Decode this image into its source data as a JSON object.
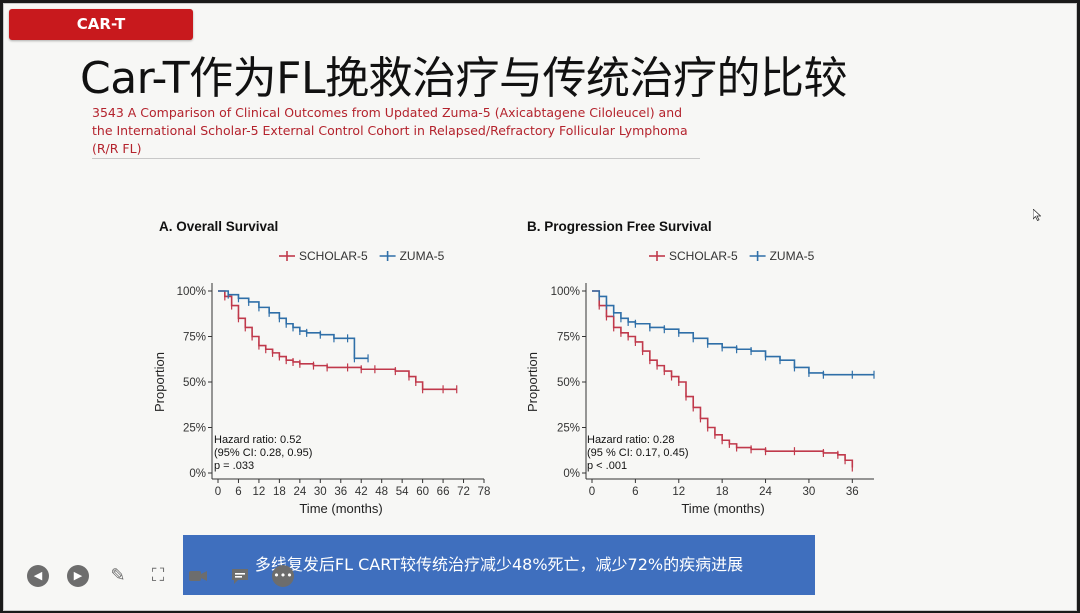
{
  "tag": {
    "label": "CAR-T"
  },
  "slide": {
    "title": "Car-T作为FL挽救治疗与传统治疗的比较",
    "subtitle": "3543 A Comparison of Clinical Outcomes from Updated Zuma-5 (Axicabtagene Ciloleucel) and the International Scholar-5 External Control Cohort in Relapsed/Refractory Follicular Lymphoma (R/R FL)",
    "caption": "多线复发后FL CART较传统治疗减少48%死亡，减少72%的疾病进展"
  },
  "colors": {
    "scholar": "#c0394b",
    "zuma": "#2f6fa8",
    "caption_bg": "#3f6fbe",
    "tag_bg": "#c8191d"
  },
  "controls": [
    {
      "name": "prev-button",
      "icon": "chevron-left-icon"
    },
    {
      "name": "next-button",
      "icon": "chevron-right-icon"
    },
    {
      "name": "pen-button",
      "icon": "pencil-icon"
    },
    {
      "name": "fullscreen-button",
      "icon": "expand-icon"
    },
    {
      "name": "video-button",
      "icon": "video-camera-icon"
    },
    {
      "name": "comment-button",
      "icon": "comment-icon"
    },
    {
      "name": "more-button",
      "icon": "more-icon"
    }
  ],
  "chart_data": [
    {
      "type": "line",
      "title": "A. Overall Survival",
      "xlabel": "Time (months)",
      "ylabel": "Proportion",
      "x_ticks": [
        0,
        6,
        12,
        18,
        24,
        30,
        36,
        42,
        48,
        54,
        60,
        66,
        72,
        78
      ],
      "y_ticks": [
        "0%",
        "25%",
        "50%",
        "75%",
        "100%"
      ],
      "xlim": [
        0,
        78
      ],
      "ylim": [
        0,
        100
      ],
      "legend": "top",
      "annotation": "Hazard ratio: 0.52\n(95% CI: 0.28, 0.95)\np = .033",
      "series": [
        {
          "name": "SCHOLAR-5",
          "points": [
            [
              0,
              100
            ],
            [
              2,
              97
            ],
            [
              4,
              92
            ],
            [
              6,
              85
            ],
            [
              8,
              80
            ],
            [
              10,
              75
            ],
            [
              12,
              70
            ],
            [
              14,
              68
            ],
            [
              16,
              66
            ],
            [
              18,
              64
            ],
            [
              20,
              62
            ],
            [
              22,
              61
            ],
            [
              24,
              60
            ],
            [
              28,
              59
            ],
            [
              32,
              58
            ],
            [
              38,
              58
            ],
            [
              42,
              57
            ],
            [
              46,
              57
            ],
            [
              52,
              56
            ],
            [
              56,
              53
            ],
            [
              58,
              50
            ],
            [
              60,
              46
            ],
            [
              66,
              46
            ],
            [
              70,
              46
            ]
          ]
        },
        {
          "name": "ZUMA-5",
          "points": [
            [
              0,
              100
            ],
            [
              3,
              98
            ],
            [
              6,
              96
            ],
            [
              9,
              94
            ],
            [
              12,
              91
            ],
            [
              15,
              88
            ],
            [
              18,
              85
            ],
            [
              20,
              82
            ],
            [
              22,
              80
            ],
            [
              24,
              78
            ],
            [
              26,
              77
            ],
            [
              30,
              76
            ],
            [
              34,
              74
            ],
            [
              38,
              74
            ],
            [
              40,
              63
            ],
            [
              44,
              63
            ]
          ]
        }
      ]
    },
    {
      "type": "line",
      "title": "B. Progression Free Survival",
      "xlabel": "Time (months)",
      "ylabel": "Proportion",
      "x_ticks": [
        0,
        6,
        12,
        18,
        24,
        30,
        36
      ],
      "y_ticks": [
        "0%",
        "25%",
        "50%",
        "75%",
        "100%"
      ],
      "xlim": [
        0,
        39
      ],
      "ylim": [
        0,
        100
      ],
      "legend": "top",
      "annotation": "Hazard ratio: 0.28\n(95 % CI: 0.17, 0.45)\np < .001",
      "series": [
        {
          "name": "SCHOLAR-5",
          "points": [
            [
              0,
              100
            ],
            [
              1,
              92
            ],
            [
              2,
              86
            ],
            [
              3,
              80
            ],
            [
              4,
              77
            ],
            [
              5,
              75
            ],
            [
              6,
              72
            ],
            [
              7,
              67
            ],
            [
              8,
              62
            ],
            [
              9,
              59
            ],
            [
              10,
              56
            ],
            [
              11,
              53
            ],
            [
              12,
              50
            ],
            [
              13,
              42
            ],
            [
              14,
              36
            ],
            [
              15,
              30
            ],
            [
              16,
              25
            ],
            [
              17,
              21
            ],
            [
              18,
              18
            ],
            [
              19,
              16
            ],
            [
              20,
              14
            ],
            [
              22,
              13
            ],
            [
              24,
              12
            ],
            [
              28,
              12
            ],
            [
              32,
              11
            ],
            [
              34,
              10
            ],
            [
              35,
              7
            ],
            [
              36,
              3
            ]
          ]
        },
        {
          "name": "ZUMA-5",
          "points": [
            [
              0,
              100
            ],
            [
              1,
              97
            ],
            [
              2,
              92
            ],
            [
              3,
              88
            ],
            [
              4,
              85
            ],
            [
              5,
              83
            ],
            [
              6,
              82
            ],
            [
              8,
              80
            ],
            [
              10,
              79
            ],
            [
              12,
              77
            ],
            [
              14,
              74
            ],
            [
              16,
              71
            ],
            [
              18,
              69
            ],
            [
              20,
              68
            ],
            [
              22,
              67
            ],
            [
              24,
              64
            ],
            [
              26,
              62
            ],
            [
              28,
              58
            ],
            [
              30,
              55
            ],
            [
              32,
              54
            ],
            [
              36,
              54
            ],
            [
              39,
              54
            ]
          ]
        }
      ]
    }
  ]
}
